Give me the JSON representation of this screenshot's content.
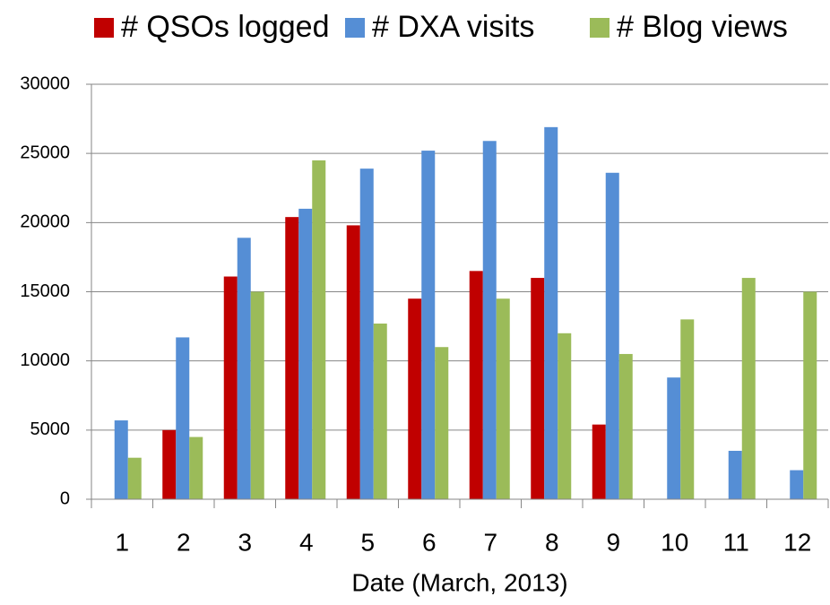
{
  "chart_data": {
    "type": "bar",
    "x_label": "Date (March, 2013)",
    "categories": [
      "1",
      "2",
      "3",
      "4",
      "5",
      "6",
      "7",
      "8",
      "9",
      "10",
      "11",
      "12"
    ],
    "series": [
      {
        "name": "# QSOs logged",
        "color": "#c00000",
        "values": [
          null,
          5000,
          16100,
          20400,
          19800,
          14500,
          16500,
          16000,
          5400,
          null,
          null,
          null
        ]
      },
      {
        "name": "# DXA visits",
        "color": "#558ed5",
        "values": [
          5700,
          11700,
          18900,
          21000,
          23900,
          25200,
          25900,
          26900,
          23600,
          8800,
          3500,
          2100
        ]
      },
      {
        "name": "# Blog views",
        "color": "#9bbb59",
        "values": [
          3000,
          4500,
          15000,
          24500,
          12700,
          11000,
          14500,
          12000,
          10500,
          13000,
          16000,
          15000
        ]
      }
    ],
    "ylim": [
      0,
      30000
    ],
    "yticks": [
      0,
      5000,
      10000,
      15000,
      20000,
      25000,
      30000
    ],
    "grid": true,
    "legend": "top"
  }
}
